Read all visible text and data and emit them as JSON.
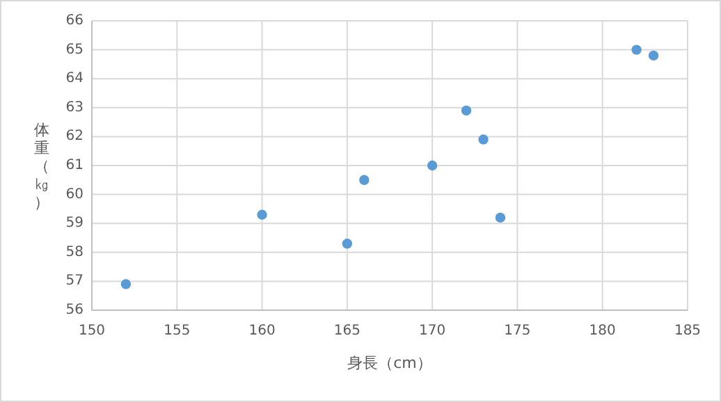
{
  "chart_data": {
    "type": "scatter",
    "xlabel": "身長（cm）",
    "ylabel": "体重（㎏）",
    "x": [
      152,
      160,
      165,
      166,
      170,
      172,
      173,
      174,
      182,
      183
    ],
    "series": [
      {
        "color": "#5b9bd5",
        "values": [
          56.9,
          59.3,
          58.3,
          60.5,
          61.0,
          62.9,
          61.9,
          59.2,
          65.0,
          64.8
        ]
      }
    ],
    "xlim": [
      150,
      185
    ],
    "xticks": [
      150,
      155,
      160,
      165,
      170,
      175,
      180,
      185
    ],
    "ylim": [
      56,
      66
    ],
    "yticks": [
      56,
      57,
      58,
      59,
      60,
      61,
      62,
      63,
      64,
      65,
      66
    ],
    "grid": true,
    "marker": "circle"
  }
}
